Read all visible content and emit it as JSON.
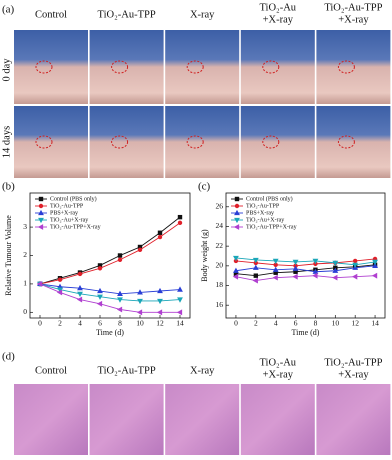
{
  "panel_a": {
    "label": "(a)",
    "column_headers": [
      [
        "Control"
      ],
      [
        "TiO₂-Au-TPP"
      ],
      [
        "X-ray"
      ],
      [
        "TiO₂-Au",
        "+X-ray"
      ],
      [
        "TiO₂-Au-TPP",
        "+X-ray"
      ]
    ],
    "row_labels": [
      "0 day",
      "14 days"
    ]
  },
  "chart_data": [
    {
      "type": "line",
      "panel_label": "(b)",
      "x_label": "Time (d)",
      "y_label": "Relative Tumour Volume",
      "x": [
        0,
        2,
        4,
        6,
        8,
        10,
        12,
        14
      ],
      "xlim": [
        -1,
        15
      ],
      "xticks": [
        0,
        2,
        4,
        6,
        8,
        10,
        12,
        14
      ],
      "ylim": [
        -0.2,
        4.2
      ],
      "yticks": [
        0,
        1,
        2,
        3
      ],
      "series": [
        {
          "name": "Control (PBS only)",
          "color": "#111111",
          "marker": "square",
          "values": [
            1,
            1.2,
            1.4,
            1.65,
            2.0,
            2.3,
            2.8,
            3.35
          ]
        },
        {
          "name": "TiO₂-Au-TPP",
          "color": "#e0202a",
          "marker": "circle",
          "values": [
            1,
            1.15,
            1.35,
            1.55,
            1.85,
            2.2,
            2.65,
            3.15
          ]
        },
        {
          "name": "PBS+X-ray",
          "color": "#2a3fd6",
          "marker": "triangle-up",
          "values": [
            1,
            0.9,
            0.85,
            0.75,
            0.65,
            0.7,
            0.75,
            0.8
          ]
        },
        {
          "name": "TiO₂-Au+X-ray",
          "color": "#1aa6b8",
          "marker": "triangle-down",
          "values": [
            1,
            0.8,
            0.65,
            0.55,
            0.45,
            0.4,
            0.4,
            0.45
          ]
        },
        {
          "name": "TiO₂-Au-TPP+X-ray",
          "color": "#b03fd0",
          "marker": "triangle-left",
          "values": [
            1,
            0.7,
            0.45,
            0.3,
            0.1,
            0.0,
            0.0,
            0.0
          ]
        }
      ]
    },
    {
      "type": "line",
      "panel_label": "(c)",
      "x_label": "Time (d)",
      "y_label": "Body weight (g)",
      "x": [
        0,
        2,
        4,
        6,
        8,
        10,
        12,
        14
      ],
      "xlim": [
        -1,
        15
      ],
      "xticks": [
        0,
        2,
        4,
        6,
        8,
        10,
        12,
        14
      ],
      "ylim": [
        14.7,
        27.4
      ],
      "yticks": [
        16,
        18,
        20,
        22,
        24,
        26
      ],
      "series": [
        {
          "name": "Control (PBS only)",
          "color": "#111111",
          "marker": "square",
          "values": [
            19.2,
            19.0,
            19.3,
            19.4,
            19.6,
            19.8,
            19.9,
            20.1
          ]
        },
        {
          "name": "TiO₂-Au-TPP",
          "color": "#e0202a",
          "marker": "circle",
          "values": [
            20.5,
            20.3,
            20.1,
            20.0,
            20.2,
            20.3,
            20.5,
            20.7
          ]
        },
        {
          "name": "PBS+X-ray",
          "color": "#2a3fd6",
          "marker": "triangle-up",
          "values": [
            19.5,
            19.8,
            19.6,
            19.7,
            19.4,
            19.5,
            19.8,
            20.0
          ]
        },
        {
          "name": "TiO₂-Au+X-ray",
          "color": "#1aa6b8",
          "marker": "triangle-down",
          "values": [
            20.8,
            20.6,
            20.5,
            20.4,
            20.5,
            20.3,
            20.1,
            20.4
          ]
        },
        {
          "name": "TiO₂-Au-TPP+X-ray",
          "color": "#b03fd0",
          "marker": "triangle-left",
          "values": [
            18.9,
            18.5,
            18.8,
            18.9,
            19.0,
            18.8,
            18.9,
            19.0
          ]
        }
      ]
    }
  ],
  "panel_d": {
    "label": "(d)",
    "column_headers": [
      [
        "Control"
      ],
      [
        "TiO₂-Au-TPP"
      ],
      [
        "X-ray"
      ],
      [
        "TiO₂-Au",
        "+X-ray"
      ],
      [
        "TiO₂-Au-TPP",
        "+X-ray"
      ]
    ]
  }
}
